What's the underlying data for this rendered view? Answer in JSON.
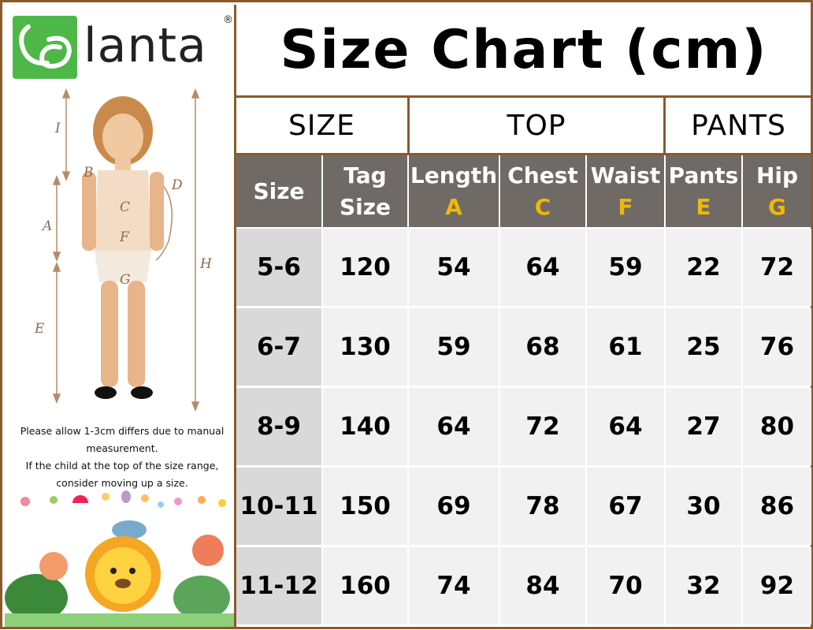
{
  "brand": {
    "name": "lanta",
    "reg": "®"
  },
  "diagram_labels": [
    "I",
    "B",
    "D",
    "A",
    "C",
    "F",
    "G",
    "H",
    "E"
  ],
  "note": [
    "Please allow 1-3cm differs due to manual",
    "measurement.",
    "If the child at the top of the size range,",
    "consider moving up a size."
  ],
  "title": "Size Chart (cm)",
  "groups": {
    "size": "SIZE",
    "top": "TOP",
    "pants": "PANTS"
  },
  "columns": [
    {
      "label": "Size",
      "sub": ""
    },
    {
      "label": "Tag",
      "label2": "Size",
      "sub": ""
    },
    {
      "label": "Length",
      "sub": "A"
    },
    {
      "label": "Chest",
      "sub": "C"
    },
    {
      "label": "Waist",
      "sub": "F"
    },
    {
      "label": "Pants",
      "sub": "E"
    },
    {
      "label": "Hip",
      "sub": "G"
    }
  ],
  "rows": [
    [
      "5-6",
      "120",
      "54",
      "64",
      "59",
      "22",
      "72"
    ],
    [
      "6-7",
      "130",
      "59",
      "68",
      "61",
      "25",
      "76"
    ],
    [
      "8-9",
      "140",
      "64",
      "72",
      "64",
      "27",
      "80"
    ],
    [
      "10-11",
      "150",
      "69",
      "78",
      "67",
      "30",
      "86"
    ],
    [
      "11-12",
      "160",
      "74",
      "84",
      "70",
      "32",
      "92"
    ]
  ],
  "colors": {
    "border": "#8a5a2b",
    "header_bg": "#6f6a66",
    "accent": "#f2b705",
    "logo_green": "#4db848"
  }
}
